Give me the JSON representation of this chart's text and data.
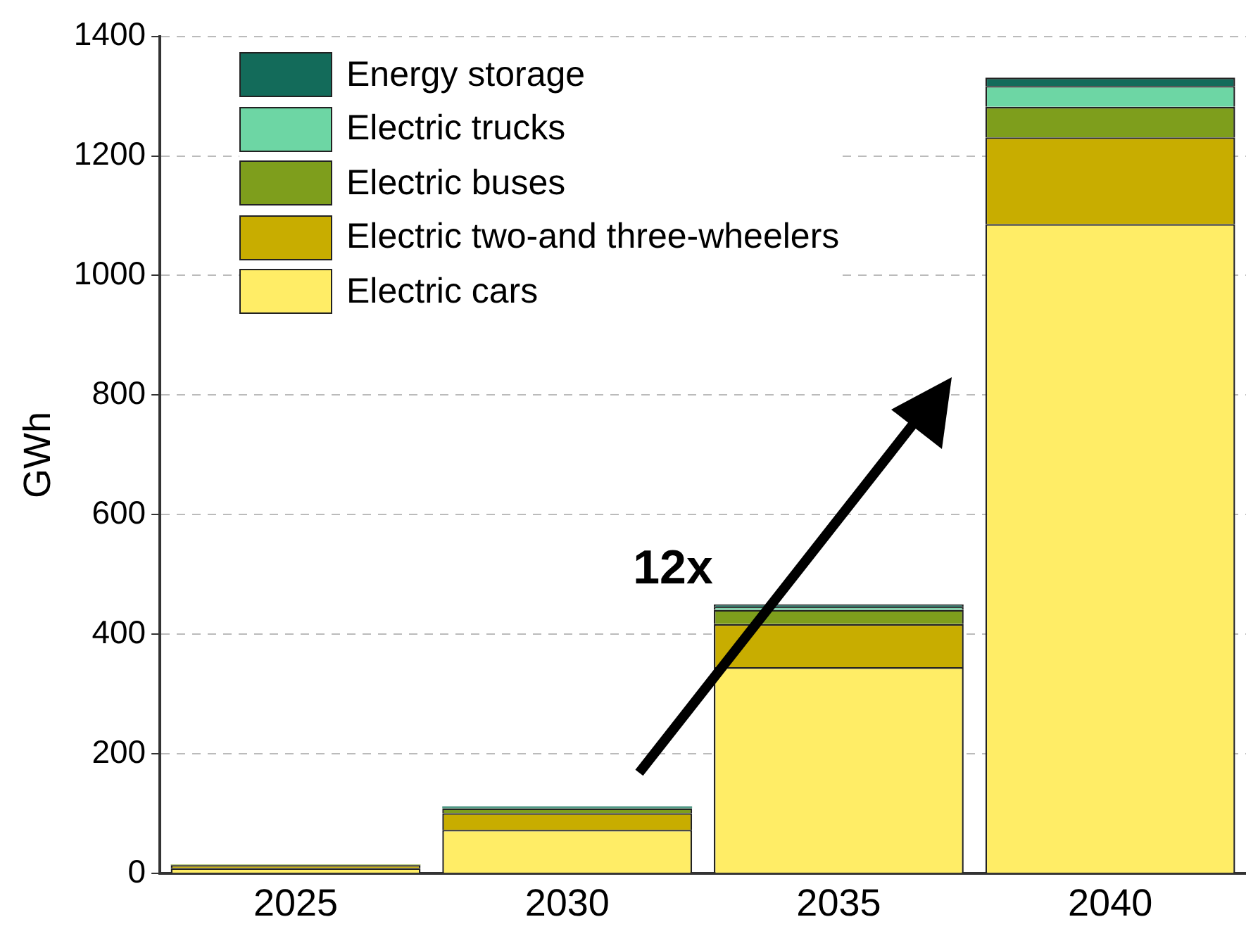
{
  "chart_data": {
    "type": "bar",
    "ylabel": "GWh",
    "categories": [
      "2025",
      "2030",
      "2035",
      "2040"
    ],
    "stacked": true,
    "series": [
      {
        "name": "Electric cars",
        "color": "#ffed66",
        "values": [
          9,
          73,
          345,
          1086
        ]
      },
      {
        "name": "Electric two-and three-wheelers",
        "color": "#c8ad00",
        "values": [
          5,
          28,
          72,
          145
        ]
      },
      {
        "name": "Electric buses",
        "color": "#7e9e1c",
        "values": [
          1,
          8,
          24,
          51
        ]
      },
      {
        "name": "Electric trucks",
        "color": "#6dd6a4",
        "values": [
          null,
          1,
          5,
          35
        ]
      },
      {
        "name": "Energy storage",
        "color": "#136b5a",
        "values": [
          null,
          2,
          4,
          14
        ]
      }
    ],
    "ylim": [
      0,
      1400
    ],
    "yticks": [
      0,
      200,
      400,
      600,
      800,
      1000,
      1200,
      1400
    ],
    "grid": "y",
    "legend": "top left",
    "annotations": [
      "12x"
    ]
  }
}
